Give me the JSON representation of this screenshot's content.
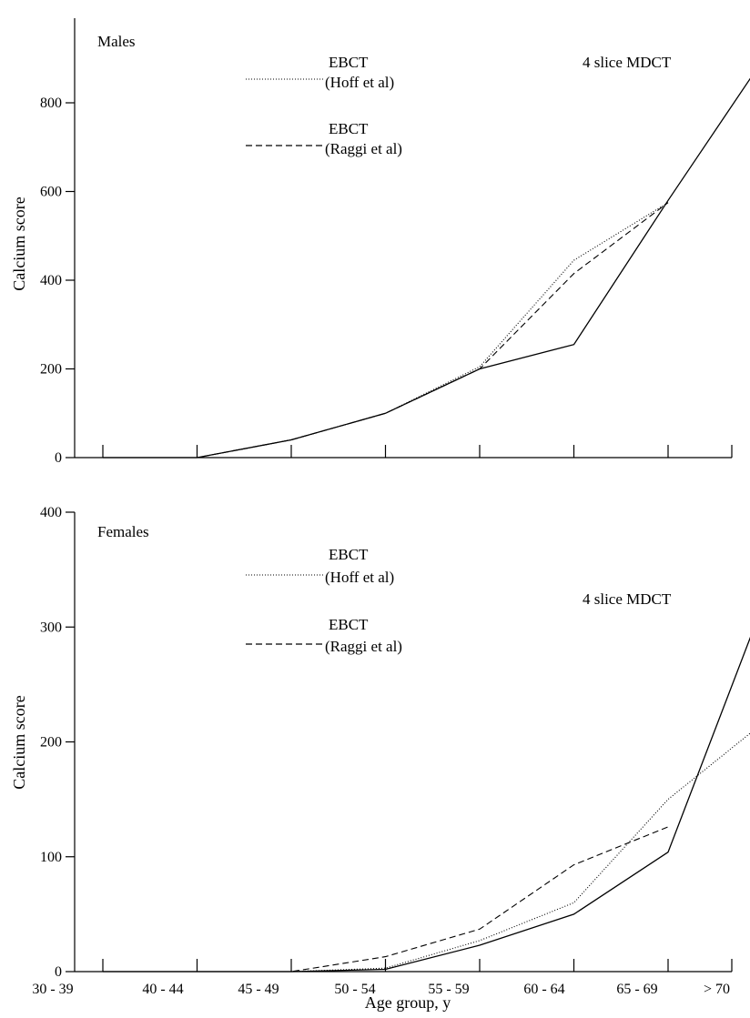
{
  "chart_data": [
    {
      "type": "line",
      "panel_label": "Males",
      "title": "",
      "xlabel": "",
      "ylabel": "Calcium score",
      "ylim": [
        0,
        900
      ],
      "yticks": [
        0,
        200,
        400,
        600,
        800
      ],
      "categories": [
        "30 - 39",
        "40 - 44",
        "45 - 49",
        "50 - 54",
        "55 - 59",
        "60 - 64",
        "65 - 69",
        "> 70"
      ],
      "series": [
        {
          "name": "4 slice MDCT",
          "style": "solid",
          "x": [
            0,
            1,
            2,
            3,
            4,
            5,
            6,
            7
          ],
          "y": [
            0,
            0,
            40,
            100,
            200,
            255,
            580,
            895
          ]
        },
        {
          "name": "EBCT (Hoff et al)",
          "style": "dotted",
          "x": [
            0,
            1,
            2,
            3,
            4,
            5,
            6
          ],
          "y": [
            0,
            0,
            40,
            100,
            205,
            445,
            575
          ]
        },
        {
          "name": "EBCT (Raggi et al)",
          "style": "dashed",
          "x": [
            0,
            1,
            2,
            3,
            4,
            5,
            6
          ],
          "y": [
            0,
            0,
            40,
            100,
            200,
            415,
            575
          ]
        }
      ],
      "legend": [
        {
          "line1": "EBCT",
          "line2": "(Hoff et al)",
          "style": "dotted"
        },
        {
          "line1": "EBCT",
          "line2": "(Raggi et al)",
          "style": "dashed"
        }
      ],
      "annotation": "4 slice MDCT"
    },
    {
      "type": "line",
      "panel_label": "Females",
      "title": "",
      "xlabel": "Age group, y",
      "ylabel": "Calcium score",
      "ylim": [
        0,
        400
      ],
      "yticks": [
        0,
        100,
        200,
        300,
        400
      ],
      "categories": [
        "30 - 39",
        "40 - 44",
        "45 - 49",
        "50 - 54",
        "55 - 59",
        "60 - 64",
        "65 - 69",
        "> 70"
      ],
      "series": [
        {
          "name": "4 slice MDCT",
          "style": "solid",
          "x": [
            0,
            1,
            2,
            3,
            4,
            5,
            6,
            7
          ],
          "y": [
            0,
            0,
            0,
            2,
            23,
            50,
            104,
            318
          ]
        },
        {
          "name": "EBCT (Hoff et al)",
          "style": "dotted",
          "x": [
            0,
            1,
            2,
            3,
            4,
            5,
            6,
            7
          ],
          "y": [
            0,
            0,
            0,
            3,
            27,
            60,
            150,
            216
          ]
        },
        {
          "name": "EBCT (Raggi et al)",
          "style": "dashed",
          "x": [
            0,
            1,
            2,
            3,
            4,
            5,
            6
          ],
          "y": [
            0,
            0,
            0,
            13,
            37,
            93,
            126
          ]
        }
      ],
      "legend": [
        {
          "line1": "EBCT",
          "line2": "(Hoff et al)",
          "style": "dotted"
        },
        {
          "line1": "EBCT",
          "line2": "(Raggi et al)",
          "style": "dashed"
        }
      ],
      "annotation": "4 slice MDCT"
    }
  ]
}
